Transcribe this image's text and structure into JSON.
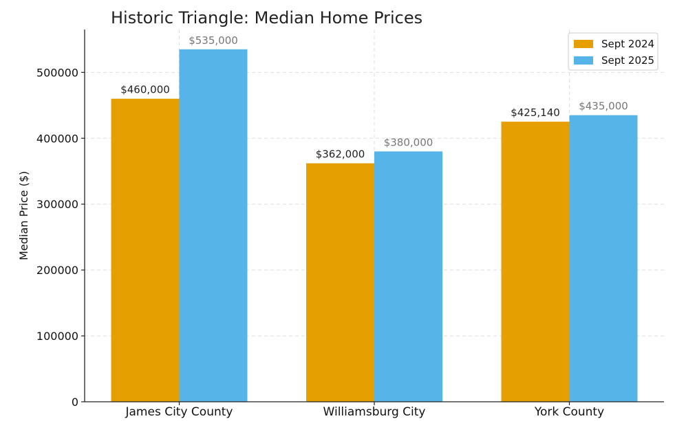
{
  "chart_data": {
    "type": "bar",
    "title": "Historic Triangle: Median Home Prices",
    "xlabel": "",
    "ylabel": "Median Price ($)",
    "categories": [
      "James City County",
      "Williamsburg City",
      "York County"
    ],
    "series": [
      {
        "name": "Sept 2024",
        "color": "#E69F00",
        "label_color": "#222222",
        "values": [
          460000,
          362000,
          425140
        ],
        "labels": [
          "$460,000",
          "$362,000",
          "$425,140"
        ]
      },
      {
        "name": "Sept 2025",
        "color": "#56B4E9",
        "label_color": "#777777",
        "values": [
          535000,
          380000,
          435000
        ],
        "labels": [
          "$535,000",
          "$380,000",
          "$435,000"
        ]
      }
    ],
    "ylim": [
      0,
      565000
    ],
    "yticks": [
      0,
      100000,
      200000,
      300000,
      400000,
      500000
    ],
    "ytick_labels": [
      "0",
      "100000",
      "200000",
      "300000",
      "400000",
      "500000"
    ],
    "grid": true,
    "legend_position": "top-right"
  }
}
